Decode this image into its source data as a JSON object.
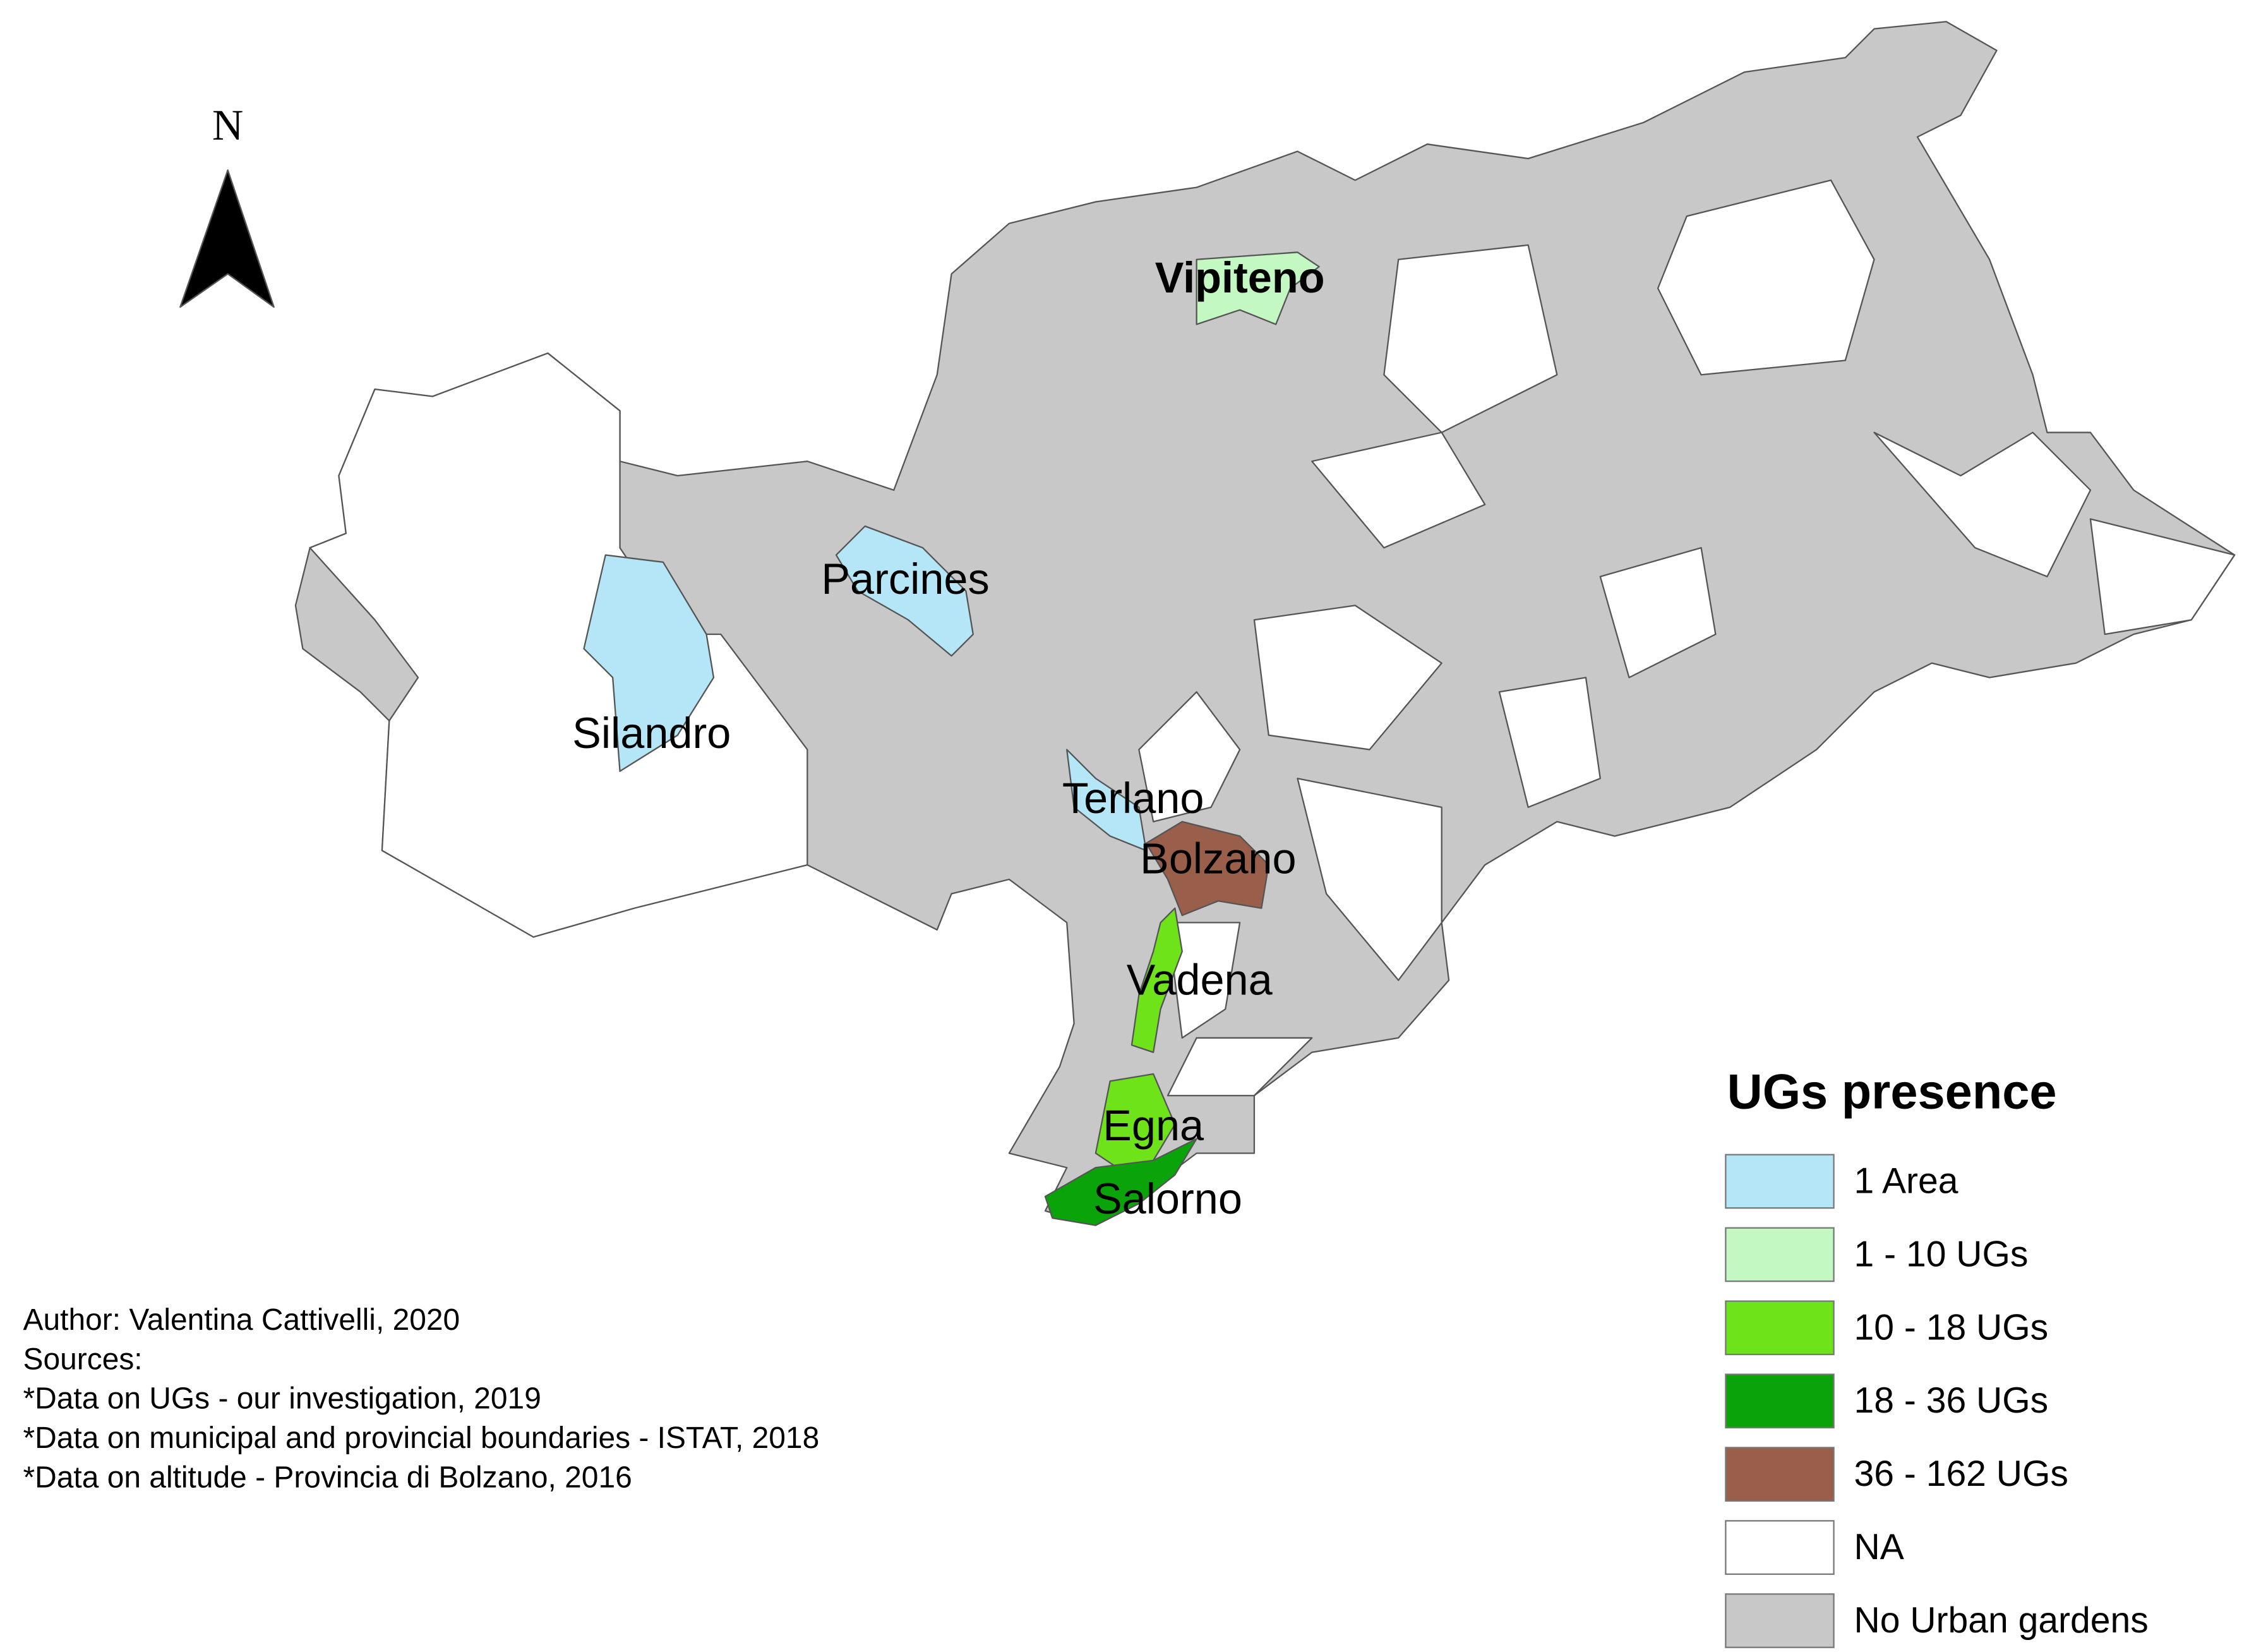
{
  "map": {
    "north": "N",
    "places": [
      "Vipiteno",
      "Parcines",
      "Silandro",
      "Terlano",
      "Bolzano",
      "Vadena",
      "Egna",
      "Salorno"
    ],
    "legend": {
      "title": "UGs presence",
      "items": [
        {
          "label": "1 Area",
          "color": "#b4e6f8"
        },
        {
          "label": "1 - 10 UGs",
          "color": "#c3f8c3"
        },
        {
          "label": "10 - 18 UGs",
          "color": "#6ee31a"
        },
        {
          "label": "18 - 36 UGs",
          "color": "#0aa30a"
        },
        {
          "label": "36 - 162 UGs",
          "color": "#9a5f4a"
        },
        {
          "label": "NA",
          "color": "#ffffff"
        },
        {
          "label": "No Urban gardens",
          "color": "#c8c8c8"
        }
      ]
    },
    "credits": [
      "Author: Valentina Cattivelli, 2020",
      "Sources:",
      "*Data on UGs - our investigation, 2019",
      "*Data on municipal and provincial boundaries - ISTAT, 2018",
      "*Data on altitude - Provincia di Bolzano, 2016"
    ]
  }
}
